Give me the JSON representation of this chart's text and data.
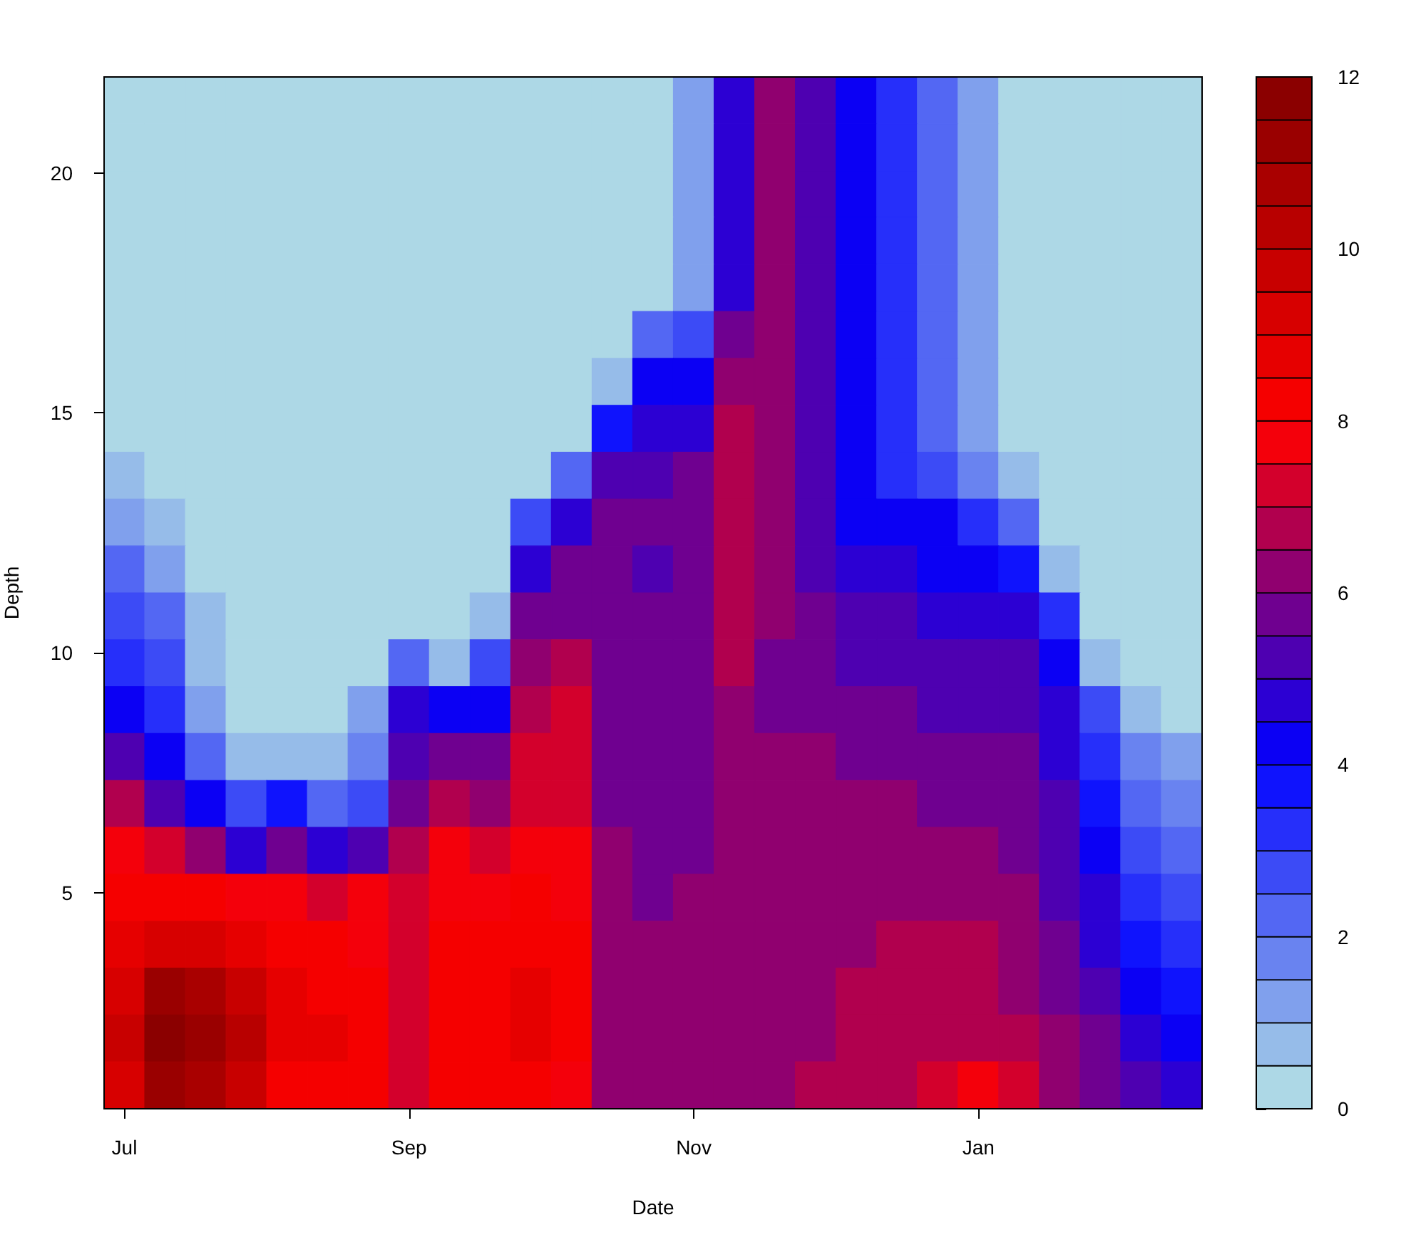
{
  "chart_data": {
    "type": "heatmap",
    "xlabel": "Date",
    "ylabel": "Depth",
    "categories": [
      "Jul",
      null,
      null,
      null,
      null,
      null,
      null,
      "Sep",
      null,
      null,
      null,
      null,
      null,
      null,
      "Nov",
      null,
      null,
      null,
      null,
      null,
      null,
      "Jan",
      null,
      null,
      null,
      null,
      null
    ],
    "ylim": [
      0.5,
      22
    ],
    "yticks": [
      5,
      10,
      15,
      20
    ],
    "clim": [
      0,
      12
    ],
    "cticks": [
      0,
      2,
      4,
      6,
      8,
      10,
      12
    ],
    "cells": [
      [
        0.25,
        0.25,
        0.25,
        0.25,
        0.25,
        0.25,
        0.25,
        0.25,
        0.25,
        0.25,
        0.25,
        0.25,
        0.25,
        0.25,
        1.25,
        4.75,
        6.25,
        5.25,
        4.25,
        3.25,
        2.25,
        1.25,
        0.25,
        0.25,
        0.25,
        0.25,
        0.25
      ],
      [
        0.25,
        0.25,
        0.25,
        0.25,
        0.25,
        0.25,
        0.25,
        0.25,
        0.25,
        0.25,
        0.25,
        0.25,
        0.25,
        0.25,
        1.25,
        4.75,
        6.25,
        5.25,
        4.25,
        3.25,
        2.25,
        1.25,
        0.25,
        0.25,
        0.25,
        0.25,
        0.25
      ],
      [
        0.25,
        0.25,
        0.25,
        0.25,
        0.25,
        0.25,
        0.25,
        0.25,
        0.25,
        0.25,
        0.25,
        0.25,
        0.25,
        0.25,
        1.25,
        4.75,
        6.25,
        5.25,
        4.25,
        3.25,
        2.25,
        1.25,
        0.25,
        0.25,
        0.25,
        0.25,
        0.25
      ],
      [
        0.25,
        0.25,
        0.25,
        0.25,
        0.25,
        0.25,
        0.25,
        0.25,
        0.25,
        0.25,
        0.25,
        0.25,
        0.25,
        0.25,
        1.25,
        4.75,
        6.25,
        5.25,
        4.25,
        3.25,
        2.25,
        1.25,
        0.25,
        0.25,
        0.25,
        0.25,
        0.25
      ],
      [
        0.25,
        0.25,
        0.25,
        0.25,
        0.25,
        0.25,
        0.25,
        0.25,
        0.25,
        0.25,
        0.25,
        0.25,
        0.25,
        0.25,
        1.25,
        4.75,
        6.25,
        5.25,
        4.25,
        3.25,
        2.25,
        1.25,
        0.25,
        0.25,
        0.25,
        0.25,
        0.25
      ],
      [
        0.25,
        0.25,
        0.25,
        0.25,
        0.25,
        0.25,
        0.25,
        0.25,
        0.25,
        0.25,
        0.25,
        0.25,
        0.25,
        2.25,
        2.75,
        5.75,
        6.25,
        5.25,
        4.25,
        3.25,
        2.25,
        1.25,
        0.25,
        0.25,
        0.25,
        0.25,
        0.25
      ],
      [
        0.25,
        0.25,
        0.25,
        0.25,
        0.25,
        0.25,
        0.25,
        0.25,
        0.25,
        0.25,
        0.25,
        0.25,
        0.75,
        4.25,
        4.25,
        6.25,
        6.25,
        5.25,
        4.25,
        3.25,
        2.25,
        1.25,
        0.25,
        0.25,
        0.25,
        0.25,
        0.25
      ],
      [
        0.25,
        0.25,
        0.25,
        0.25,
        0.25,
        0.25,
        0.25,
        0.25,
        0.25,
        0.25,
        0.25,
        0.25,
        3.75,
        4.75,
        4.75,
        6.75,
        6.25,
        5.25,
        4.25,
        3.25,
        2.25,
        1.25,
        0.25,
        0.25,
        0.25,
        0.25,
        0.25
      ],
      [
        0.75,
        0.25,
        0.25,
        0.25,
        0.25,
        0.25,
        0.25,
        0.25,
        0.25,
        0.25,
        0.25,
        2.25,
        5.25,
        5.25,
        5.75,
        6.75,
        6.25,
        5.25,
        4.25,
        3.25,
        2.75,
        1.75,
        0.75,
        0.25,
        0.25,
        0.25,
        0.25
      ],
      [
        1.25,
        0.75,
        0.25,
        0.25,
        0.25,
        0.25,
        0.25,
        0.25,
        0.25,
        0.25,
        2.75,
        4.75,
        5.75,
        5.75,
        5.75,
        6.75,
        6.25,
        5.25,
        4.25,
        4.25,
        4.25,
        3.25,
        2.25,
        0.25,
        0.25,
        0.25,
        0.25
      ],
      [
        2.25,
        1.25,
        0.25,
        0.25,
        0.25,
        0.25,
        0.25,
        0.25,
        0.25,
        0.25,
        4.75,
        5.75,
        5.75,
        5.25,
        5.75,
        6.75,
        6.25,
        5.25,
        4.75,
        4.75,
        4.25,
        4.25,
        3.75,
        0.75,
        0.25,
        0.25,
        0.25
      ],
      [
        2.75,
        2.25,
        0.75,
        0.25,
        0.25,
        0.25,
        0.25,
        0.25,
        0.25,
        0.75,
        5.75,
        5.75,
        5.75,
        5.75,
        5.75,
        6.75,
        6.25,
        5.75,
        5.25,
        5.25,
        4.75,
        4.75,
        4.75,
        3.25,
        0.25,
        0.25,
        0.25
      ],
      [
        3.25,
        2.75,
        0.75,
        0.25,
        0.25,
        0.25,
        0.25,
        2.25,
        0.75,
        2.75,
        6.25,
        6.75,
        5.75,
        5.75,
        5.75,
        6.75,
        5.75,
        5.75,
        5.25,
        5.25,
        5.25,
        5.25,
        5.25,
        4.25,
        0.75,
        0.25,
        0.25
      ],
      [
        4.25,
        3.25,
        1.25,
        0.25,
        0.25,
        0.25,
        1.25,
        4.75,
        4.25,
        4.25,
        6.75,
        7.25,
        5.75,
        5.75,
        5.75,
        6.25,
        5.75,
        5.75,
        5.75,
        5.75,
        5.25,
        5.25,
        5.25,
        4.75,
        2.75,
        0.75,
        0.25
      ],
      [
        5.25,
        4.25,
        2.25,
        0.75,
        0.75,
        0.75,
        1.75,
        5.25,
        5.75,
        5.75,
        7.25,
        7.25,
        5.75,
        5.75,
        5.75,
        6.25,
        6.25,
        6.25,
        5.75,
        5.75,
        5.75,
        5.75,
        5.75,
        4.75,
        3.25,
        1.75,
        1.25
      ],
      [
        6.75,
        5.25,
        4.25,
        2.75,
        3.75,
        2.25,
        2.75,
        5.75,
        6.75,
        6.25,
        7.25,
        7.25,
        5.75,
        5.75,
        5.75,
        6.25,
        6.25,
        6.25,
        6.25,
        6.25,
        5.75,
        5.75,
        5.75,
        5.25,
        3.75,
        2.25,
        1.75
      ],
      [
        7.75,
        7.25,
        6.25,
        4.75,
        5.75,
        4.75,
        5.25,
        6.75,
        7.75,
        7.25,
        7.75,
        7.75,
        6.25,
        5.75,
        5.75,
        6.25,
        6.25,
        6.25,
        6.25,
        6.25,
        6.25,
        6.25,
        5.75,
        5.25,
        4.25,
        2.75,
        2.25
      ],
      [
        8.25,
        8.25,
        8.25,
        7.75,
        7.75,
        7.25,
        7.75,
        7.25,
        7.75,
        7.75,
        8.25,
        7.75,
        6.25,
        5.75,
        6.25,
        6.25,
        6.25,
        6.25,
        6.25,
        6.25,
        6.25,
        6.25,
        6.25,
        5.25,
        4.75,
        3.25,
        2.75
      ],
      [
        8.75,
        9.25,
        9.25,
        8.75,
        8.25,
        8.25,
        7.75,
        7.25,
        8.25,
        8.25,
        8.25,
        8.25,
        6.25,
        6.25,
        6.25,
        6.25,
        6.25,
        6.25,
        6.25,
        6.75,
        6.75,
        6.75,
        6.25,
        5.75,
        4.75,
        3.75,
        3.25
      ],
      [
        9.25,
        11.25,
        10.75,
        9.75,
        8.75,
        8.25,
        8.25,
        7.25,
        8.25,
        8.25,
        8.75,
        8.25,
        6.25,
        6.25,
        6.25,
        6.25,
        6.25,
        6.25,
        6.75,
        6.75,
        6.75,
        6.75,
        6.25,
        5.75,
        5.25,
        4.25,
        3.75
      ],
      [
        9.75,
        11.75,
        11.25,
        10.25,
        8.75,
        8.75,
        8.25,
        7.25,
        8.25,
        8.25,
        8.75,
        8.25,
        6.25,
        6.25,
        6.25,
        6.25,
        6.25,
        6.25,
        6.75,
        6.75,
        6.75,
        6.75,
        6.75,
        6.25,
        5.75,
        4.75,
        4.25
      ],
      [
        9.25,
        11.25,
        10.75,
        9.75,
        8.25,
        8.25,
        8.25,
        7.25,
        8.25,
        8.25,
        8.25,
        7.75,
        6.25,
        6.25,
        6.25,
        6.25,
        6.25,
        6.75,
        6.75,
        6.75,
        7.25,
        7.75,
        7.25,
        6.25,
        5.75,
        5.25,
        4.75
      ]
    ]
  }
}
